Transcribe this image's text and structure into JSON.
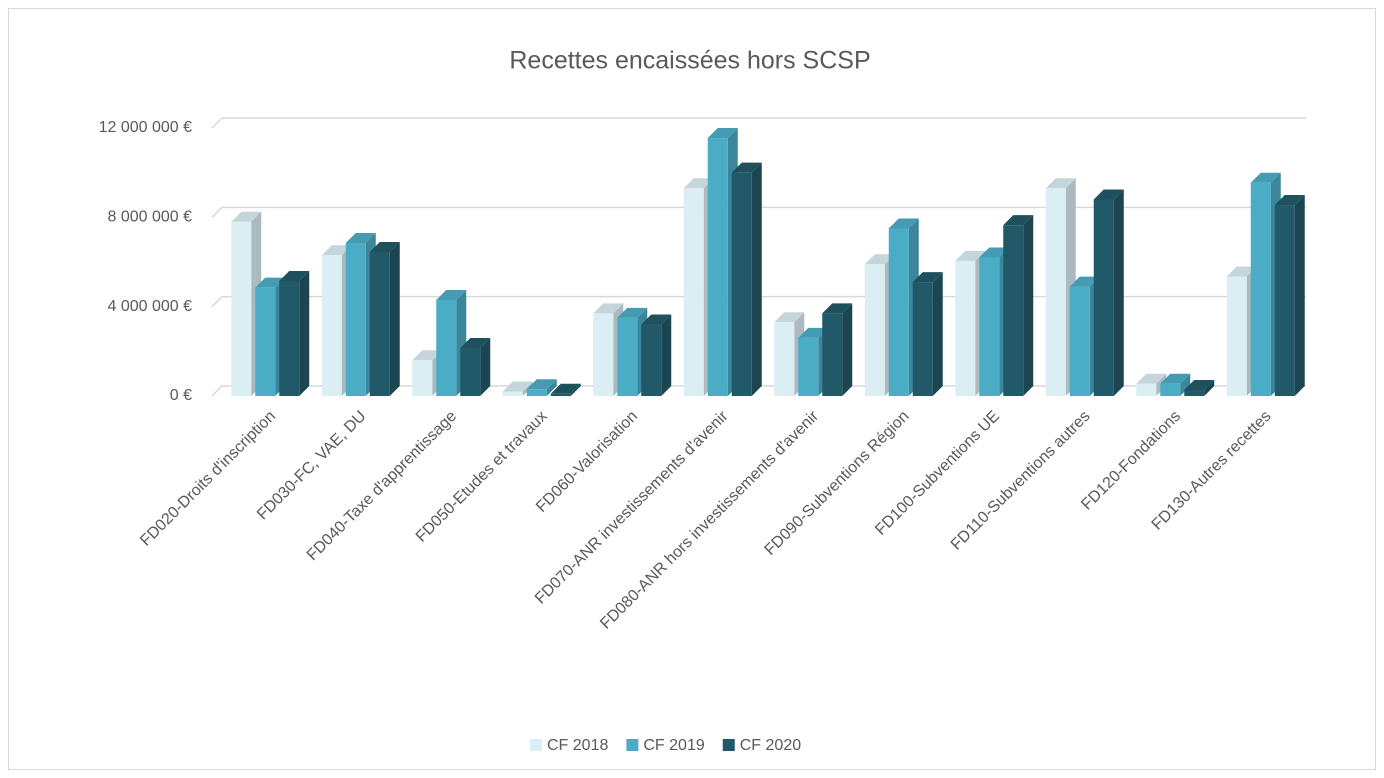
{
  "chart_data": {
    "type": "bar3d",
    "title": "Recettes encaissées hors SCSP",
    "categories": [
      "FD020-Droits d'inscription",
      "FD030-FC, VAE, DU",
      "FD040-Taxe d'apprentissage",
      "FD050-Etudes et travaux",
      "FD060-Valorisation",
      "FD070-ANR investissements d'avenir",
      "FD080-ANR hors investissements d'avenir",
      "FD090-Subventions Région",
      "FD100-Subventions UE",
      "FD110-Subventions autres",
      "FD120-Fondations",
      "FD130-Autres recettes"
    ],
    "series": [
      {
        "name": "CF 2018",
        "color": "#daeef3",
        "values": [
          7800000,
          6300000,
          1600000,
          200000,
          3700000,
          9300000,
          3300000,
          5900000,
          6050000,
          9300000,
          550000,
          5350000
        ]
      },
      {
        "name": "CF 2019",
        "color": "#4bacc6",
        "values": [
          4850000,
          6850000,
          4300000,
          300000,
          3500000,
          11550000,
          2600000,
          7500000,
          6200000,
          4900000,
          550000,
          9550000
        ]
      },
      {
        "name": "CF 2020",
        "color": "#215968",
        "values": [
          5150000,
          6450000,
          2150000,
          100000,
          3200000,
          10000000,
          3700000,
          5100000,
          7650000,
          8800000,
          270000,
          8550000
        ]
      }
    ],
    "ylim": [
      0,
      12000000
    ],
    "yticks": [
      {
        "value": 0,
        "label": "0 €"
      },
      {
        "value": 4000000,
        "label": "4 000 000 €"
      },
      {
        "value": 8000000,
        "label": "8 000 000 €"
      },
      {
        "value": 12000000,
        "label": "12 000 000 €"
      }
    ],
    "grid": true,
    "legend": "bottom"
  }
}
